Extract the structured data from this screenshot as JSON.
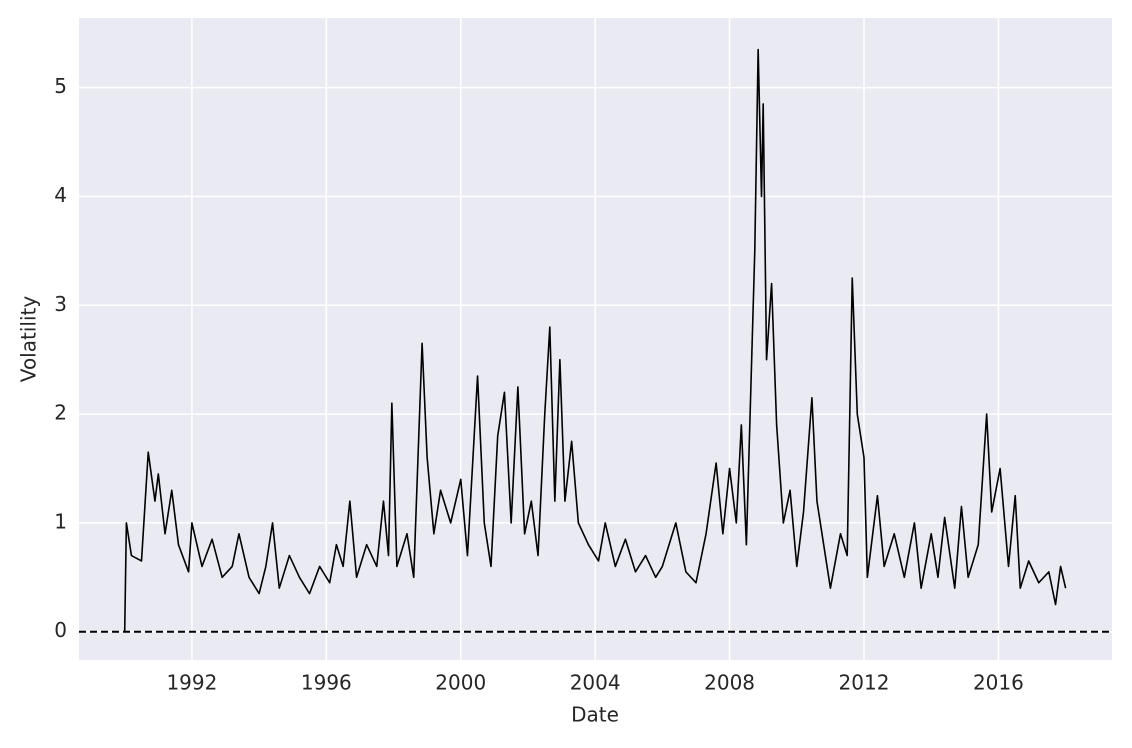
{
  "chart_data": {
    "type": "line",
    "xlabel": "Date",
    "ylabel": "Volatility",
    "color": "#000000",
    "background": "#eaeaf2",
    "grid": true,
    "hline": 0,
    "hline_color": "#000000",
    "xlim": [
      1988.64,
      2019.38
    ],
    "ylim": [
      -0.26,
      5.64
    ],
    "xticks": [
      1992,
      1996,
      2000,
      2004,
      2008,
      2012,
      2016
    ],
    "yticks": [
      0,
      1,
      2,
      3,
      4,
      5
    ],
    "x": [
      1990.0,
      1990.05,
      1990.2,
      1990.5,
      1990.7,
      1990.9,
      1991.0,
      1991.2,
      1991.4,
      1991.6,
      1991.9,
      1992.0,
      1992.3,
      1992.6,
      1992.9,
      1993.2,
      1993.4,
      1993.7,
      1994.0,
      1994.2,
      1994.4,
      1994.6,
      1994.9,
      1995.2,
      1995.5,
      1995.8,
      1996.1,
      1996.3,
      1996.5,
      1996.7,
      1996.9,
      1997.2,
      1997.5,
      1997.7,
      1997.85,
      1997.95,
      1998.1,
      1998.4,
      1998.6,
      1998.85,
      1999.0,
      1999.2,
      1999.4,
      1999.7,
      2000.0,
      2000.2,
      2000.4,
      2000.5,
      2000.7,
      2000.9,
      2001.1,
      2001.3,
      2001.5,
      2001.7,
      2001.9,
      2002.1,
      2002.3,
      2002.5,
      2002.65,
      2002.8,
      2002.95,
      2003.1,
      2003.3,
      2003.5,
      2003.8,
      2004.1,
      2004.3,
      2004.6,
      2004.9,
      2005.2,
      2005.5,
      2005.8,
      2006.0,
      2006.4,
      2006.7,
      2007.0,
      2007.3,
      2007.6,
      2007.8,
      2008.0,
      2008.2,
      2008.35,
      2008.5,
      2008.75,
      2008.85,
      2008.95,
      2009.0,
      2009.1,
      2009.25,
      2009.4,
      2009.6,
      2009.8,
      2010.0,
      2010.2,
      2010.45,
      2010.6,
      2010.8,
      2011.0,
      2011.3,
      2011.5,
      2011.65,
      2011.8,
      2012.0,
      2012.1,
      2012.4,
      2012.6,
      2012.9,
      2013.2,
      2013.5,
      2013.7,
      2014.0,
      2014.2,
      2014.4,
      2014.7,
      2014.9,
      2015.1,
      2015.4,
      2015.65,
      2015.8,
      2016.05,
      2016.3,
      2016.5,
      2016.65,
      2016.9,
      2017.2,
      2017.5,
      2017.7,
      2017.85,
      2018.0
    ],
    "values": [
      0,
      1.0,
      0.7,
      0.65,
      1.65,
      1.2,
      1.45,
      0.9,
      1.3,
      0.8,
      0.55,
      1.0,
      0.6,
      0.85,
      0.5,
      0.6,
      0.9,
      0.5,
      0.35,
      0.6,
      1.0,
      0.4,
      0.7,
      0.5,
      0.35,
      0.6,
      0.45,
      0.8,
      0.6,
      1.2,
      0.5,
      0.8,
      0.6,
      1.2,
      0.7,
      2.1,
      0.6,
      0.9,
      0.5,
      2.65,
      1.6,
      0.9,
      1.3,
      1.0,
      1.4,
      0.7,
      1.8,
      2.35,
      1.0,
      0.6,
      1.8,
      2.2,
      1.0,
      2.25,
      0.9,
      1.2,
      0.7,
      2.0,
      2.8,
      1.2,
      2.5,
      1.2,
      1.75,
      1.0,
      0.8,
      0.65,
      1.0,
      0.6,
      0.85,
      0.55,
      0.7,
      0.5,
      0.6,
      1.0,
      0.55,
      0.45,
      0.9,
      1.55,
      0.9,
      1.5,
      1.0,
      1.9,
      0.8,
      3.5,
      5.35,
      4.0,
      4.85,
      2.5,
      3.2,
      1.9,
      1.0,
      1.3,
      0.6,
      1.1,
      2.15,
      1.2,
      0.8,
      0.4,
      0.9,
      0.7,
      3.25,
      2.0,
      1.6,
      0.5,
      1.25,
      0.6,
      0.9,
      0.5,
      1.0,
      0.4,
      0.9,
      0.5,
      1.05,
      0.4,
      1.15,
      0.5,
      0.8,
      2.0,
      1.1,
      1.5,
      0.6,
      1.25,
      0.4,
      0.65,
      0.45,
      0.55,
      0.25,
      0.6,
      0.4
    ]
  }
}
